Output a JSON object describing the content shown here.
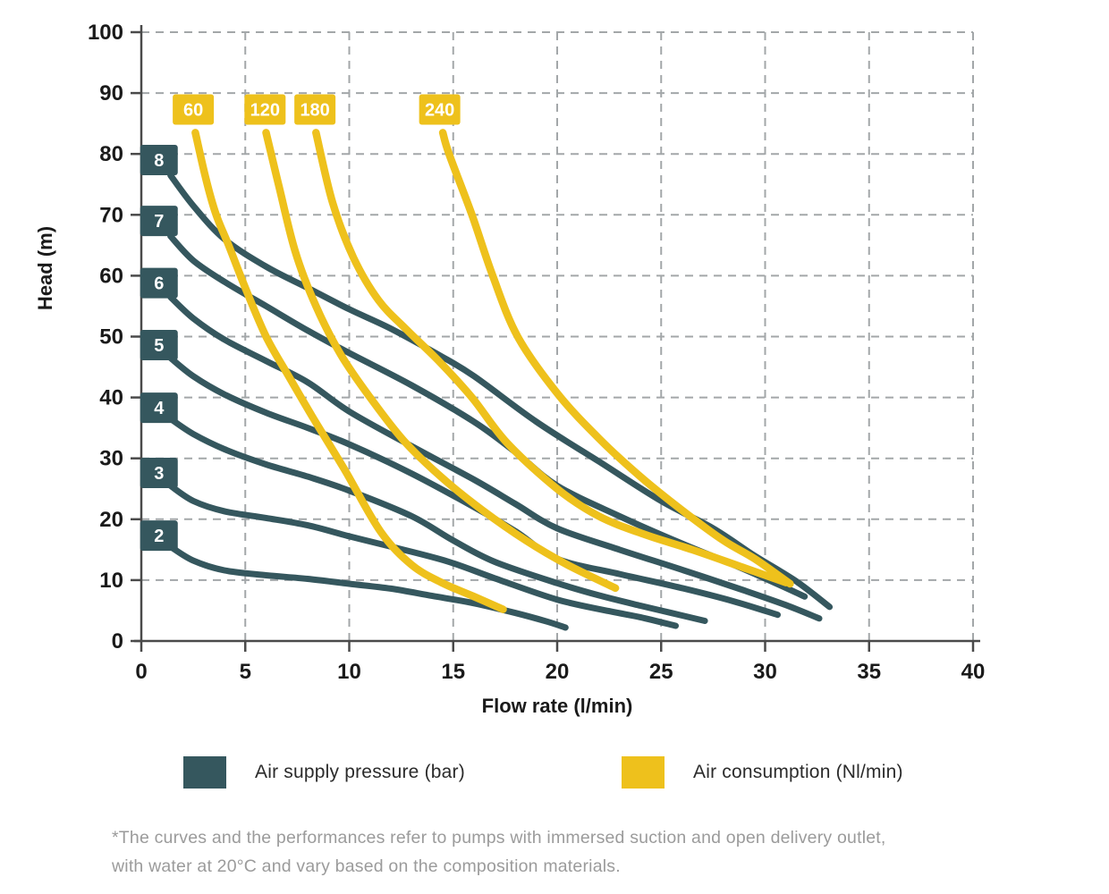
{
  "chart_data": {
    "type": "line",
    "title": "",
    "xlabel": "Flow rate (l/min)",
    "ylabel": "Head (m)",
    "xlim": [
      0,
      40
    ],
    "ylim": [
      0,
      100
    ],
    "x_ticks": [
      0,
      5,
      10,
      15,
      20,
      25,
      30,
      35,
      40
    ],
    "y_ticks": [
      0,
      10,
      20,
      30,
      40,
      50,
      60,
      70,
      80,
      90,
      100
    ],
    "grid": "dashed",
    "legend_position": "bottom",
    "colors": {
      "pressure": "#35575e",
      "consumption": "#eec11c",
      "grid": "#a3a7a9",
      "axis": "#4a4a4a",
      "tick_text": "#1a1a1a",
      "label_text": "#ffffff"
    },
    "series": [
      {
        "group": "pressure",
        "name": "8 bar",
        "label": "8",
        "label_at": [
          0.85,
          79.0
        ],
        "points": [
          [
            1.4,
            76.5
          ],
          [
            2.5,
            71.5
          ],
          [
            4,
            66
          ],
          [
            6,
            61.5
          ],
          [
            8,
            58
          ],
          [
            10,
            54.5
          ],
          [
            12,
            51.3
          ],
          [
            14.3,
            47
          ],
          [
            16,
            43.5
          ],
          [
            19,
            36
          ],
          [
            22,
            29.5
          ],
          [
            25,
            23
          ],
          [
            27.5,
            18.5
          ],
          [
            29.5,
            14
          ],
          [
            31.5,
            9.8
          ],
          [
            33.1,
            5.6
          ]
        ]
      },
      {
        "group": "pressure",
        "name": "7 bar",
        "label": "7",
        "label_at": [
          0.85,
          69.0
        ],
        "points": [
          [
            1.4,
            66.5
          ],
          [
            2.5,
            62.5
          ],
          [
            4,
            59
          ],
          [
            6,
            55
          ],
          [
            8,
            51
          ],
          [
            10,
            47.3
          ],
          [
            13,
            42
          ],
          [
            16,
            36
          ],
          [
            18,
            31
          ],
          [
            20,
            25.5
          ],
          [
            23,
            20.5
          ],
          [
            26,
            16
          ],
          [
            28.5,
            12.5
          ],
          [
            30.5,
            9.5
          ],
          [
            31.9,
            7.3
          ]
        ]
      },
      {
        "group": "pressure",
        "name": "6 bar",
        "label": "6",
        "label_at": [
          0.85,
          58.8
        ],
        "points": [
          [
            1.4,
            56.5
          ],
          [
            2.5,
            53
          ],
          [
            4,
            49.5
          ],
          [
            6,
            46
          ],
          [
            8,
            42.5
          ],
          [
            10,
            37.7
          ],
          [
            13,
            32
          ],
          [
            16,
            26.5
          ],
          [
            18,
            22.5
          ],
          [
            20,
            18.5
          ],
          [
            23,
            15
          ],
          [
            26,
            11.7
          ],
          [
            29,
            8.3
          ],
          [
            31,
            5.9
          ],
          [
            32.6,
            3.7
          ]
        ]
      },
      {
        "group": "pressure",
        "name": "5 bar",
        "label": "5",
        "label_at": [
          0.85,
          48.6
        ],
        "points": [
          [
            1.4,
            46.5
          ],
          [
            2.5,
            43.5
          ],
          [
            4,
            40.5
          ],
          [
            6,
            37.5
          ],
          [
            8,
            35
          ],
          [
            10,
            32.3
          ],
          [
            13,
            27.5
          ],
          [
            16,
            22
          ],
          [
            18,
            18
          ],
          [
            20,
            13.5
          ],
          [
            23,
            11
          ],
          [
            26,
            8.7
          ],
          [
            28.5,
            6.5
          ],
          [
            30.6,
            4.3
          ]
        ]
      },
      {
        "group": "pressure",
        "name": "4 bar",
        "label": "4",
        "label_at": [
          0.85,
          38.3
        ],
        "points": [
          [
            1.4,
            36.5
          ],
          [
            2.5,
            34
          ],
          [
            4,
            31.5
          ],
          [
            6,
            29
          ],
          [
            8,
            27
          ],
          [
            10,
            24.7
          ],
          [
            13,
            20.5
          ],
          [
            15,
            16.5
          ],
          [
            17,
            13
          ],
          [
            20,
            9.5
          ],
          [
            22,
            7.5
          ],
          [
            24,
            5.8
          ],
          [
            25.5,
            4.6
          ],
          [
            27.1,
            3.3
          ]
        ]
      },
      {
        "group": "pressure",
        "name": "3 bar",
        "label": "3",
        "label_at": [
          0.85,
          27.6
        ],
        "points": [
          [
            1.4,
            25.5
          ],
          [
            2.5,
            23
          ],
          [
            4,
            21.3
          ],
          [
            6,
            20.2
          ],
          [
            8,
            19
          ],
          [
            10,
            17.2
          ],
          [
            12,
            15.5
          ],
          [
            14.7,
            13.1
          ],
          [
            17,
            10.3
          ],
          [
            20,
            6.8
          ],
          [
            22.5,
            4.9
          ],
          [
            24,
            3.9
          ],
          [
            25.7,
            2.5
          ]
        ]
      },
      {
        "group": "pressure",
        "name": "2 bar",
        "label": "2",
        "label_at": [
          0.85,
          17.3
        ],
        "points": [
          [
            1.4,
            15.5
          ],
          [
            2.5,
            13.2
          ],
          [
            4,
            11.6
          ],
          [
            6,
            10.8
          ],
          [
            8,
            10.2
          ],
          [
            10,
            9.4
          ],
          [
            12,
            8.6
          ],
          [
            14,
            7.4
          ],
          [
            16,
            6.2
          ],
          [
            18,
            4.6
          ],
          [
            19.5,
            3.2
          ],
          [
            20.4,
            2.2
          ]
        ]
      },
      {
        "group": "consumption",
        "name": "60 Nl/min",
        "label": "60",
        "label_at": [
          2.5,
          87.3
        ],
        "points": [
          [
            2.6,
            83.5
          ],
          [
            3.1,
            76
          ],
          [
            3.6,
            70
          ],
          [
            4.2,
            65
          ],
          [
            5,
            58
          ],
          [
            6,
            50
          ],
          [
            7,
            44
          ],
          [
            8.2,
            37
          ],
          [
            9.8,
            28
          ],
          [
            11.5,
            18
          ],
          [
            13,
            12.5
          ],
          [
            14.5,
            9.5
          ],
          [
            16,
            7.3
          ],
          [
            17.4,
            5.2
          ]
        ]
      },
      {
        "group": "consumption",
        "name": "120 Nl/min",
        "label": "120",
        "label_at": [
          5.95,
          87.3
        ],
        "points": [
          [
            6.0,
            83.5
          ],
          [
            6.6,
            75
          ],
          [
            7.4,
            64
          ],
          [
            8.4,
            55
          ],
          [
            9.6,
            47
          ],
          [
            11,
            40
          ],
          [
            12.6,
            33
          ],
          [
            14.4,
            27
          ],
          [
            16.4,
            21.5
          ],
          [
            18.5,
            16.5
          ],
          [
            20.5,
            12.5
          ],
          [
            22.8,
            8.7
          ]
        ]
      },
      {
        "group": "consumption",
        "name": "180 Nl/min",
        "label": "180",
        "label_at": [
          8.35,
          87.3
        ],
        "points": [
          [
            8.4,
            83.5
          ],
          [
            9.2,
            72
          ],
          [
            10.2,
            63
          ],
          [
            11.4,
            56
          ],
          [
            12.8,
            51
          ],
          [
            14.3,
            46
          ],
          [
            15.9,
            40
          ],
          [
            17.6,
            32.5
          ],
          [
            20,
            25
          ],
          [
            22,
            20.5
          ],
          [
            24.2,
            17.5
          ],
          [
            26.5,
            15
          ],
          [
            29,
            12
          ],
          [
            31,
            9.6
          ]
        ]
      },
      {
        "group": "consumption",
        "name": "240 Nl/min",
        "label": "240",
        "label_at": [
          14.35,
          87.3
        ],
        "points": [
          [
            14.5,
            83.5
          ],
          [
            14.8,
            80
          ],
          [
            15.9,
            70
          ],
          [
            16.9,
            60
          ],
          [
            18.1,
            50
          ],
          [
            20,
            40.7
          ],
          [
            22,
            33.3
          ],
          [
            24,
            27
          ],
          [
            26,
            21.5
          ],
          [
            28,
            16.5
          ],
          [
            29.5,
            13.5
          ],
          [
            31.2,
            9.4
          ]
        ]
      }
    ]
  },
  "legend": {
    "pressure": {
      "label": "Air supply pressure (bar)",
      "color": "#35575e"
    },
    "consumption": {
      "label": "Air consumption (Nl/min)",
      "color": "#eec11c"
    }
  },
  "footnote": {
    "line1": "*The curves and the performances refer to pumps with immersed suction and open delivery outlet,",
    "line2": "with water at 20°C and vary based on the composition materials."
  }
}
